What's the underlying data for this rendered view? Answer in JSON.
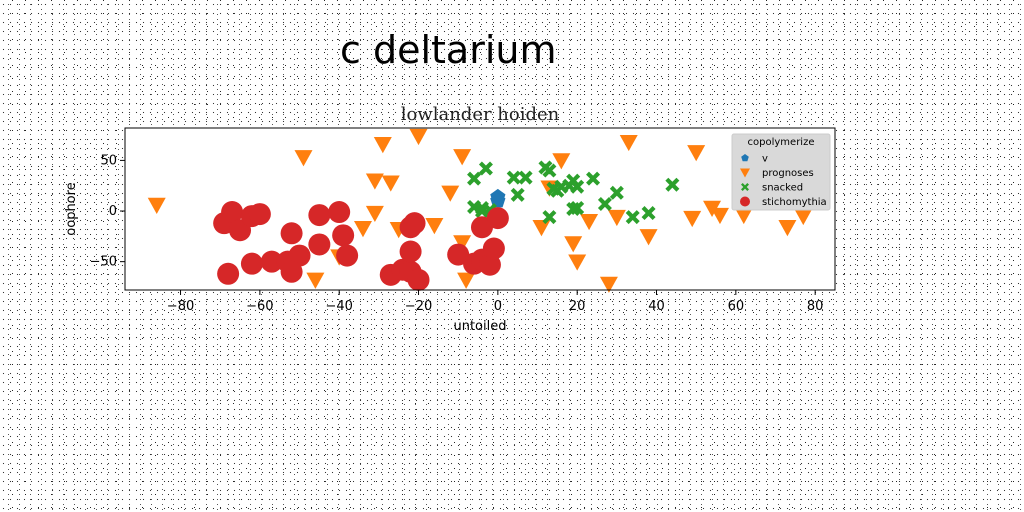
{
  "suptitle": "c deltarium",
  "chart_data": {
    "type": "scatter",
    "title": "lowlander hoiden",
    "xlabel": "untoiled",
    "ylabel": "oophore",
    "xlim": [
      -94,
      85
    ],
    "ylim": [
      -78,
      82
    ],
    "xticks": [
      -80,
      -60,
      -40,
      -20,
      0,
      20,
      40,
      60,
      80
    ],
    "yticks": [
      -50,
      0,
      50
    ],
    "legend": {
      "title": "copolymerize",
      "placement": "top-right"
    },
    "series": [
      {
        "name": "v",
        "marker": "pentagon",
        "color": "#1f77b4",
        "points": [
          [
            0,
            14
          ],
          [
            0,
            10
          ]
        ]
      },
      {
        "name": "prognoses",
        "marker": "triangle-down",
        "color": "#ff7f0e",
        "points": [
          [
            -86,
            6
          ],
          [
            -49,
            53
          ],
          [
            -29,
            66
          ],
          [
            -31,
            30
          ],
          [
            -27,
            28
          ],
          [
            -20,
            74
          ],
          [
            -31,
            -2
          ],
          [
            -34,
            -17
          ],
          [
            -25,
            -18
          ],
          [
            -40,
            -45
          ],
          [
            -46,
            -68
          ],
          [
            -16,
            -14
          ],
          [
            -12,
            18
          ],
          [
            -9,
            54
          ],
          [
            -9,
            -31
          ],
          [
            -8,
            -68
          ],
          [
            11,
            -16
          ],
          [
            13,
            23
          ],
          [
            16,
            50
          ],
          [
            19,
            -32
          ],
          [
            20,
            -50
          ],
          [
            23,
            -10
          ],
          [
            28,
            -72
          ],
          [
            30,
            -6
          ],
          [
            33,
            68
          ],
          [
            38,
            -25
          ],
          [
            49,
            -7
          ],
          [
            50,
            58
          ],
          [
            54,
            3
          ],
          [
            56,
            -4
          ],
          [
            62,
            -4
          ],
          [
            73,
            -16
          ],
          [
            77,
            -5
          ]
        ]
      },
      {
        "name": "snacked",
        "marker": "x",
        "color": "#2ca02c",
        "points": [
          [
            -6,
            32
          ],
          [
            -3,
            42
          ],
          [
            -6,
            4
          ],
          [
            -4,
            3
          ],
          [
            -2,
            1
          ],
          [
            4,
            33
          ],
          [
            5,
            16
          ],
          [
            7,
            33
          ],
          [
            12,
            43
          ],
          [
            13,
            40
          ],
          [
            14,
            22
          ],
          [
            15,
            20
          ],
          [
            16,
            24
          ],
          [
            18,
            25
          ],
          [
            19,
            30
          ],
          [
            19,
            2
          ],
          [
            20,
            3
          ],
          [
            20,
            24
          ],
          [
            24,
            32
          ],
          [
            27,
            7
          ],
          [
            30,
            18
          ],
          [
            34,
            -6
          ],
          [
            38,
            -2
          ],
          [
            44,
            26
          ],
          [
            13,
            -6
          ],
          [
            -4,
            0
          ]
        ]
      },
      {
        "name": "stichomythia",
        "marker": "circle",
        "color": "#d62728",
        "points": [
          [
            -69,
            -12
          ],
          [
            -67,
            -1
          ],
          [
            -65,
            -19
          ],
          [
            -62,
            -5
          ],
          [
            -60,
            -3
          ],
          [
            -62,
            -52
          ],
          [
            -68,
            -62
          ],
          [
            -57,
            -50
          ],
          [
            -52,
            -22
          ],
          [
            -53,
            -50
          ],
          [
            -50,
            -44
          ],
          [
            -52,
            -60
          ],
          [
            -45,
            -4
          ],
          [
            -45,
            -33
          ],
          [
            -40,
            -1
          ],
          [
            -39,
            -24
          ],
          [
            -38,
            -44
          ],
          [
            -27,
            -63
          ],
          [
            -24,
            -58
          ],
          [
            -22,
            -60
          ],
          [
            -21,
            -12
          ],
          [
            -22,
            -16
          ],
          [
            -22,
            -40
          ],
          [
            -20,
            -68
          ],
          [
            -10,
            -43
          ],
          [
            -6,
            -52
          ],
          [
            -4,
            -48
          ],
          [
            -2,
            -53
          ],
          [
            -1,
            -37
          ],
          [
            -4,
            -16
          ],
          [
            0,
            -7
          ]
        ]
      }
    ]
  }
}
